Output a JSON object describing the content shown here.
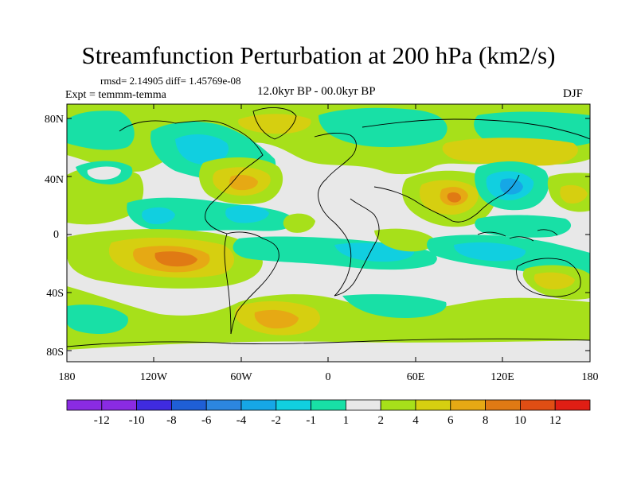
{
  "figure": {
    "title": "Streamfunction Perturbation at 200 hPa (km2/s)",
    "stats": "rmsd= 2.14905 diff= 1.45769e-08",
    "experiment": "Expt = temmm-temma",
    "period": "12.0kyr BP - 00.0kyr BP",
    "season": "DJF"
  },
  "axes": {
    "y_ticks": [
      "80N",
      "40N",
      "0",
      "40S",
      "80S"
    ],
    "x_ticks": [
      "180",
      "120W",
      "60W",
      "0",
      "60E",
      "120E",
      "180"
    ]
  },
  "colorbar": {
    "labels": [
      "-12",
      "-10",
      "-8",
      "-6",
      "-4",
      "-2",
      "-1",
      "1",
      "2",
      "4",
      "6",
      "8",
      "10",
      "12"
    ],
    "colors": [
      "#8a2be2",
      "#3f2be0",
      "#1f5fd6",
      "#2c86e0",
      "#16a7e6",
      "#11cfe0",
      "#18e0a6",
      "#e8e8e8",
      "#a7e01a",
      "#d6cf10",
      "#e6a914",
      "#e07a14",
      "#e04e14",
      "#e01e14"
    ]
  },
  "map": {
    "colors": {
      "neutral": "#e8e8e8",
      "pos1": "#a7e01a",
      "pos2": "#d6cf10",
      "pos3": "#e6a914",
      "pos4": "#e07a14",
      "neg1": "#18e0a6",
      "neg2": "#11cfe0",
      "neg3": "#16a7e6",
      "neg4": "#2c86e0"
    }
  }
}
